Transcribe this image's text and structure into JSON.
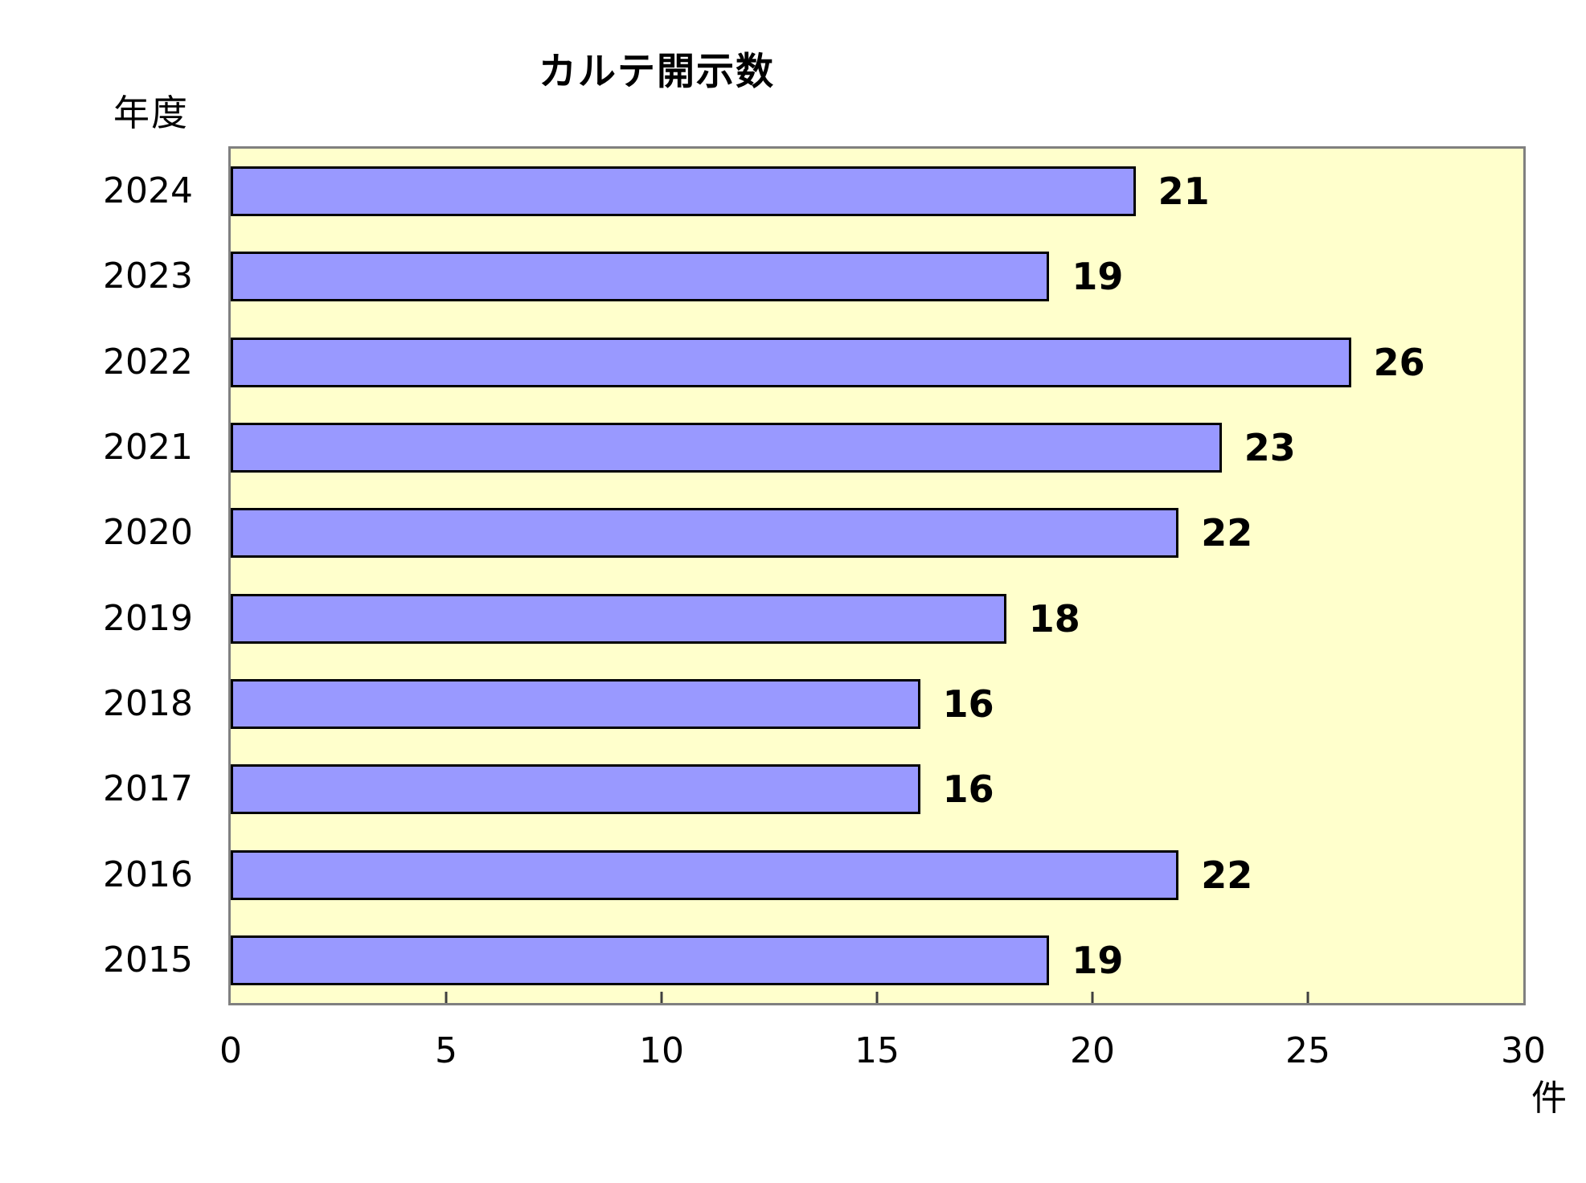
{
  "chart_data": {
    "type": "bar",
    "orientation": "horizontal",
    "title": "カルテ開示数",
    "ylabel": "年度",
    "x_unit_label": "件",
    "categories": [
      "2024",
      "2023",
      "2022",
      "2021",
      "2020",
      "2019",
      "2018",
      "2017",
      "2016",
      "2015"
    ],
    "values": [
      21,
      19,
      26,
      23,
      22,
      18,
      16,
      16,
      22,
      19
    ],
    "xticks": [
      0,
      5,
      10,
      15,
      20,
      25,
      30
    ],
    "xlim": [
      0,
      30
    ],
    "grid": false,
    "legend": false,
    "value_labels": true,
    "colors": {
      "bar_fill": "#9999FF",
      "bar_border": "#000000",
      "plot_bg": "#FFFFCC",
      "plot_border": "#808080",
      "page_bg": "#FFFFFF",
      "text": "#000000"
    }
  }
}
